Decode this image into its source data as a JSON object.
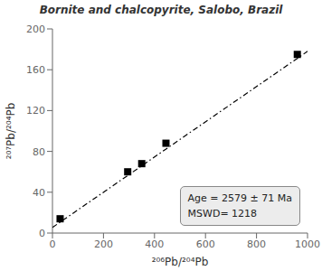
{
  "chart_data": {
    "type": "scatter",
    "title": "Bornite and chalcopyrite, Salobo, Brazil",
    "x_label": "²⁰⁶Pb/²⁰⁴Pb",
    "y_label": "²⁰⁷Pb/²⁰⁴Pb",
    "xlim": [
      0,
      1000
    ],
    "ylim": [
      0,
      200
    ],
    "xticks": [
      0,
      200,
      400,
      600,
      800,
      1000
    ],
    "yticks": [
      0,
      40,
      80,
      120,
      160,
      200
    ],
    "grid": false,
    "annotation": "Age = 2579 ± 71 Ma\nMSWD= 1218",
    "series": [
      {
        "type": "line",
        "line_style": "dashdot",
        "color": "black",
        "x": [
          0,
          1000
        ],
        "values": [
          5.5,
          178
        ]
      },
      {
        "type": "scatter",
        "marker": "square",
        "color": "black",
        "x": [
          30,
          295,
          350,
          445,
          960
        ],
        "values": [
          14,
          60,
          68,
          88,
          175
        ]
      }
    ]
  }
}
